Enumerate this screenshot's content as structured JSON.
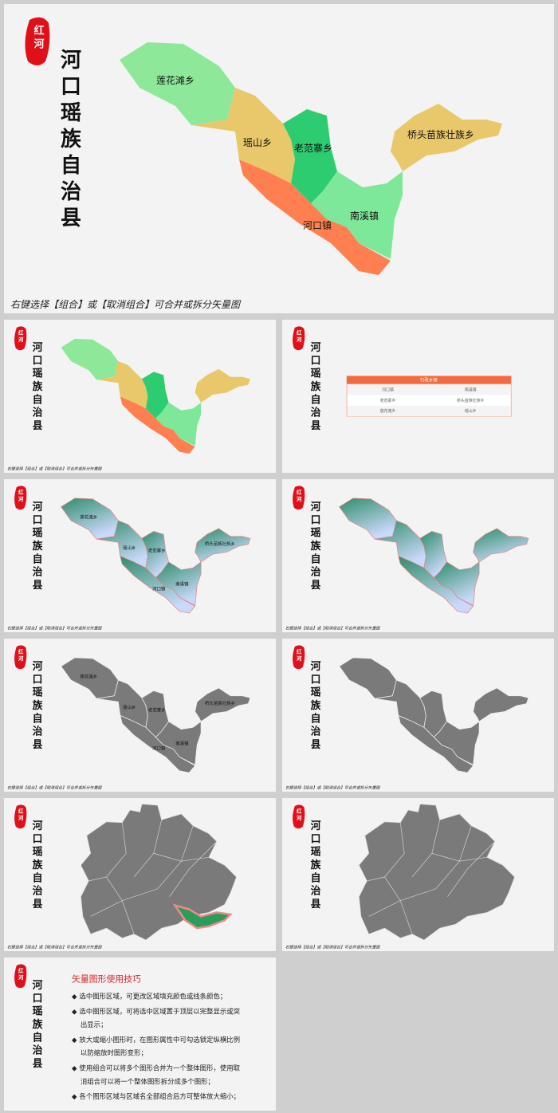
{
  "seal": "红河",
  "title": "河口瑶族自治县",
  "caption": "右键选择【组合】或【取消组合】可合并或拆分矢量图",
  "regions": [
    "莲花滩乡",
    "瑶山乡",
    "老范寨乡",
    "桥头苗族壮族乡",
    "南溪镇",
    "河口镇"
  ],
  "table": {
    "header": "行政乡镇",
    "rows": [
      [
        "河口镇",
        "南溪镇"
      ],
      [
        "老范寨乡",
        "桥头苗族壮族乡"
      ],
      [
        "莲花滩乡",
        "瑶山乡"
      ]
    ]
  },
  "tips": {
    "title": "矢量图形使用技巧",
    "bullet": "◆",
    "items": [
      "选中图形区域，可更改区域填充颜色或线条颜色；",
      "选中图形区域，可将选中区域置于顶层以完整显示或突出显示；",
      "放大或缩小图形时，在图形属性中可勾选锁定纵横比例以防缩放时图形变形；",
      "使用组合可以将多个图形合并为一个整体图形，使用取消组合可以将一个整体图形拆分成多个图形；",
      "各个图形区域与区域名全部组合后方可整体放大缩小；"
    ]
  }
}
